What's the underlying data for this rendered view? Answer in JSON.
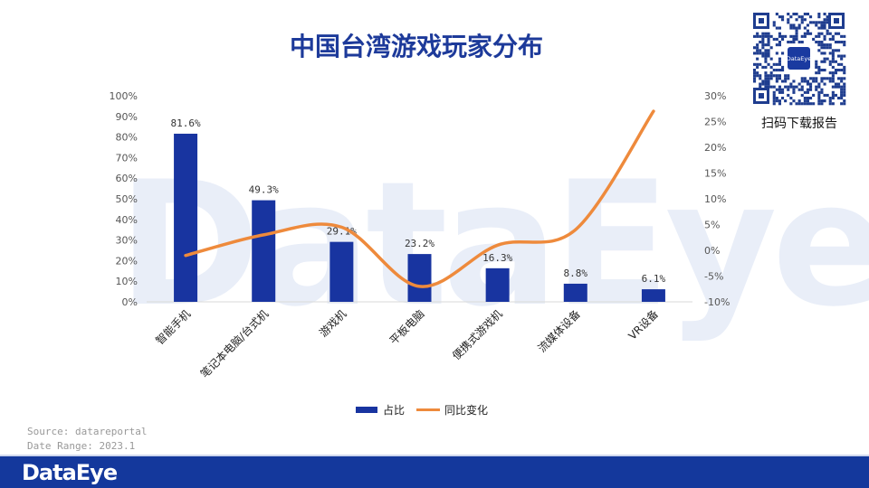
{
  "watermark": "DataEye",
  "title": "中国台湾游戏玩家分布",
  "qr": {
    "center_label": "DataEye",
    "caption": "扫码下载报告"
  },
  "source": {
    "line1": "Source: datareportal",
    "line2": "Date Range: 2023.1"
  },
  "footer": {
    "logo": "DataEye"
  },
  "colors": {
    "bar": "#1834a0",
    "line": "#ee8a3c",
    "title": "#1d3a9a",
    "footer": "#14389c"
  },
  "chart_data": {
    "type": "bar",
    "categories": [
      "智能手机",
      "笔记本电脑/台式机",
      "游戏机",
      "平板电脑",
      "便携式游戏机",
      "流媒体设备",
      "VR设备"
    ],
    "series": [
      {
        "name": "占比",
        "type": "bar",
        "axis": "left",
        "values": [
          81.6,
          49.3,
          29.1,
          23.2,
          16.3,
          8.8,
          6.1
        ],
        "labels": [
          "81.6%",
          "49.3%",
          "29.1%",
          "23.2%",
          "16.3%",
          "8.8%",
          "6.1%"
        ]
      },
      {
        "name": "同比变化",
        "type": "line",
        "axis": "right",
        "values": [
          -1,
          3,
          4.5,
          -7,
          1,
          4,
          27
        ]
      }
    ],
    "left_axis": {
      "min": 0,
      "max": 100,
      "step": 10,
      "ticks": [
        "0%",
        "10%",
        "20%",
        "30%",
        "40%",
        "50%",
        "60%",
        "70%",
        "80%",
        "90%",
        "100%"
      ]
    },
    "right_axis": {
      "min": -10,
      "max": 30,
      "step": 5,
      "ticks": [
        "-10%",
        "-5%",
        "0%",
        "5%",
        "10%",
        "15%",
        "20%",
        "25%",
        "30%"
      ]
    },
    "legend_position": "bottom",
    "grid": false
  }
}
